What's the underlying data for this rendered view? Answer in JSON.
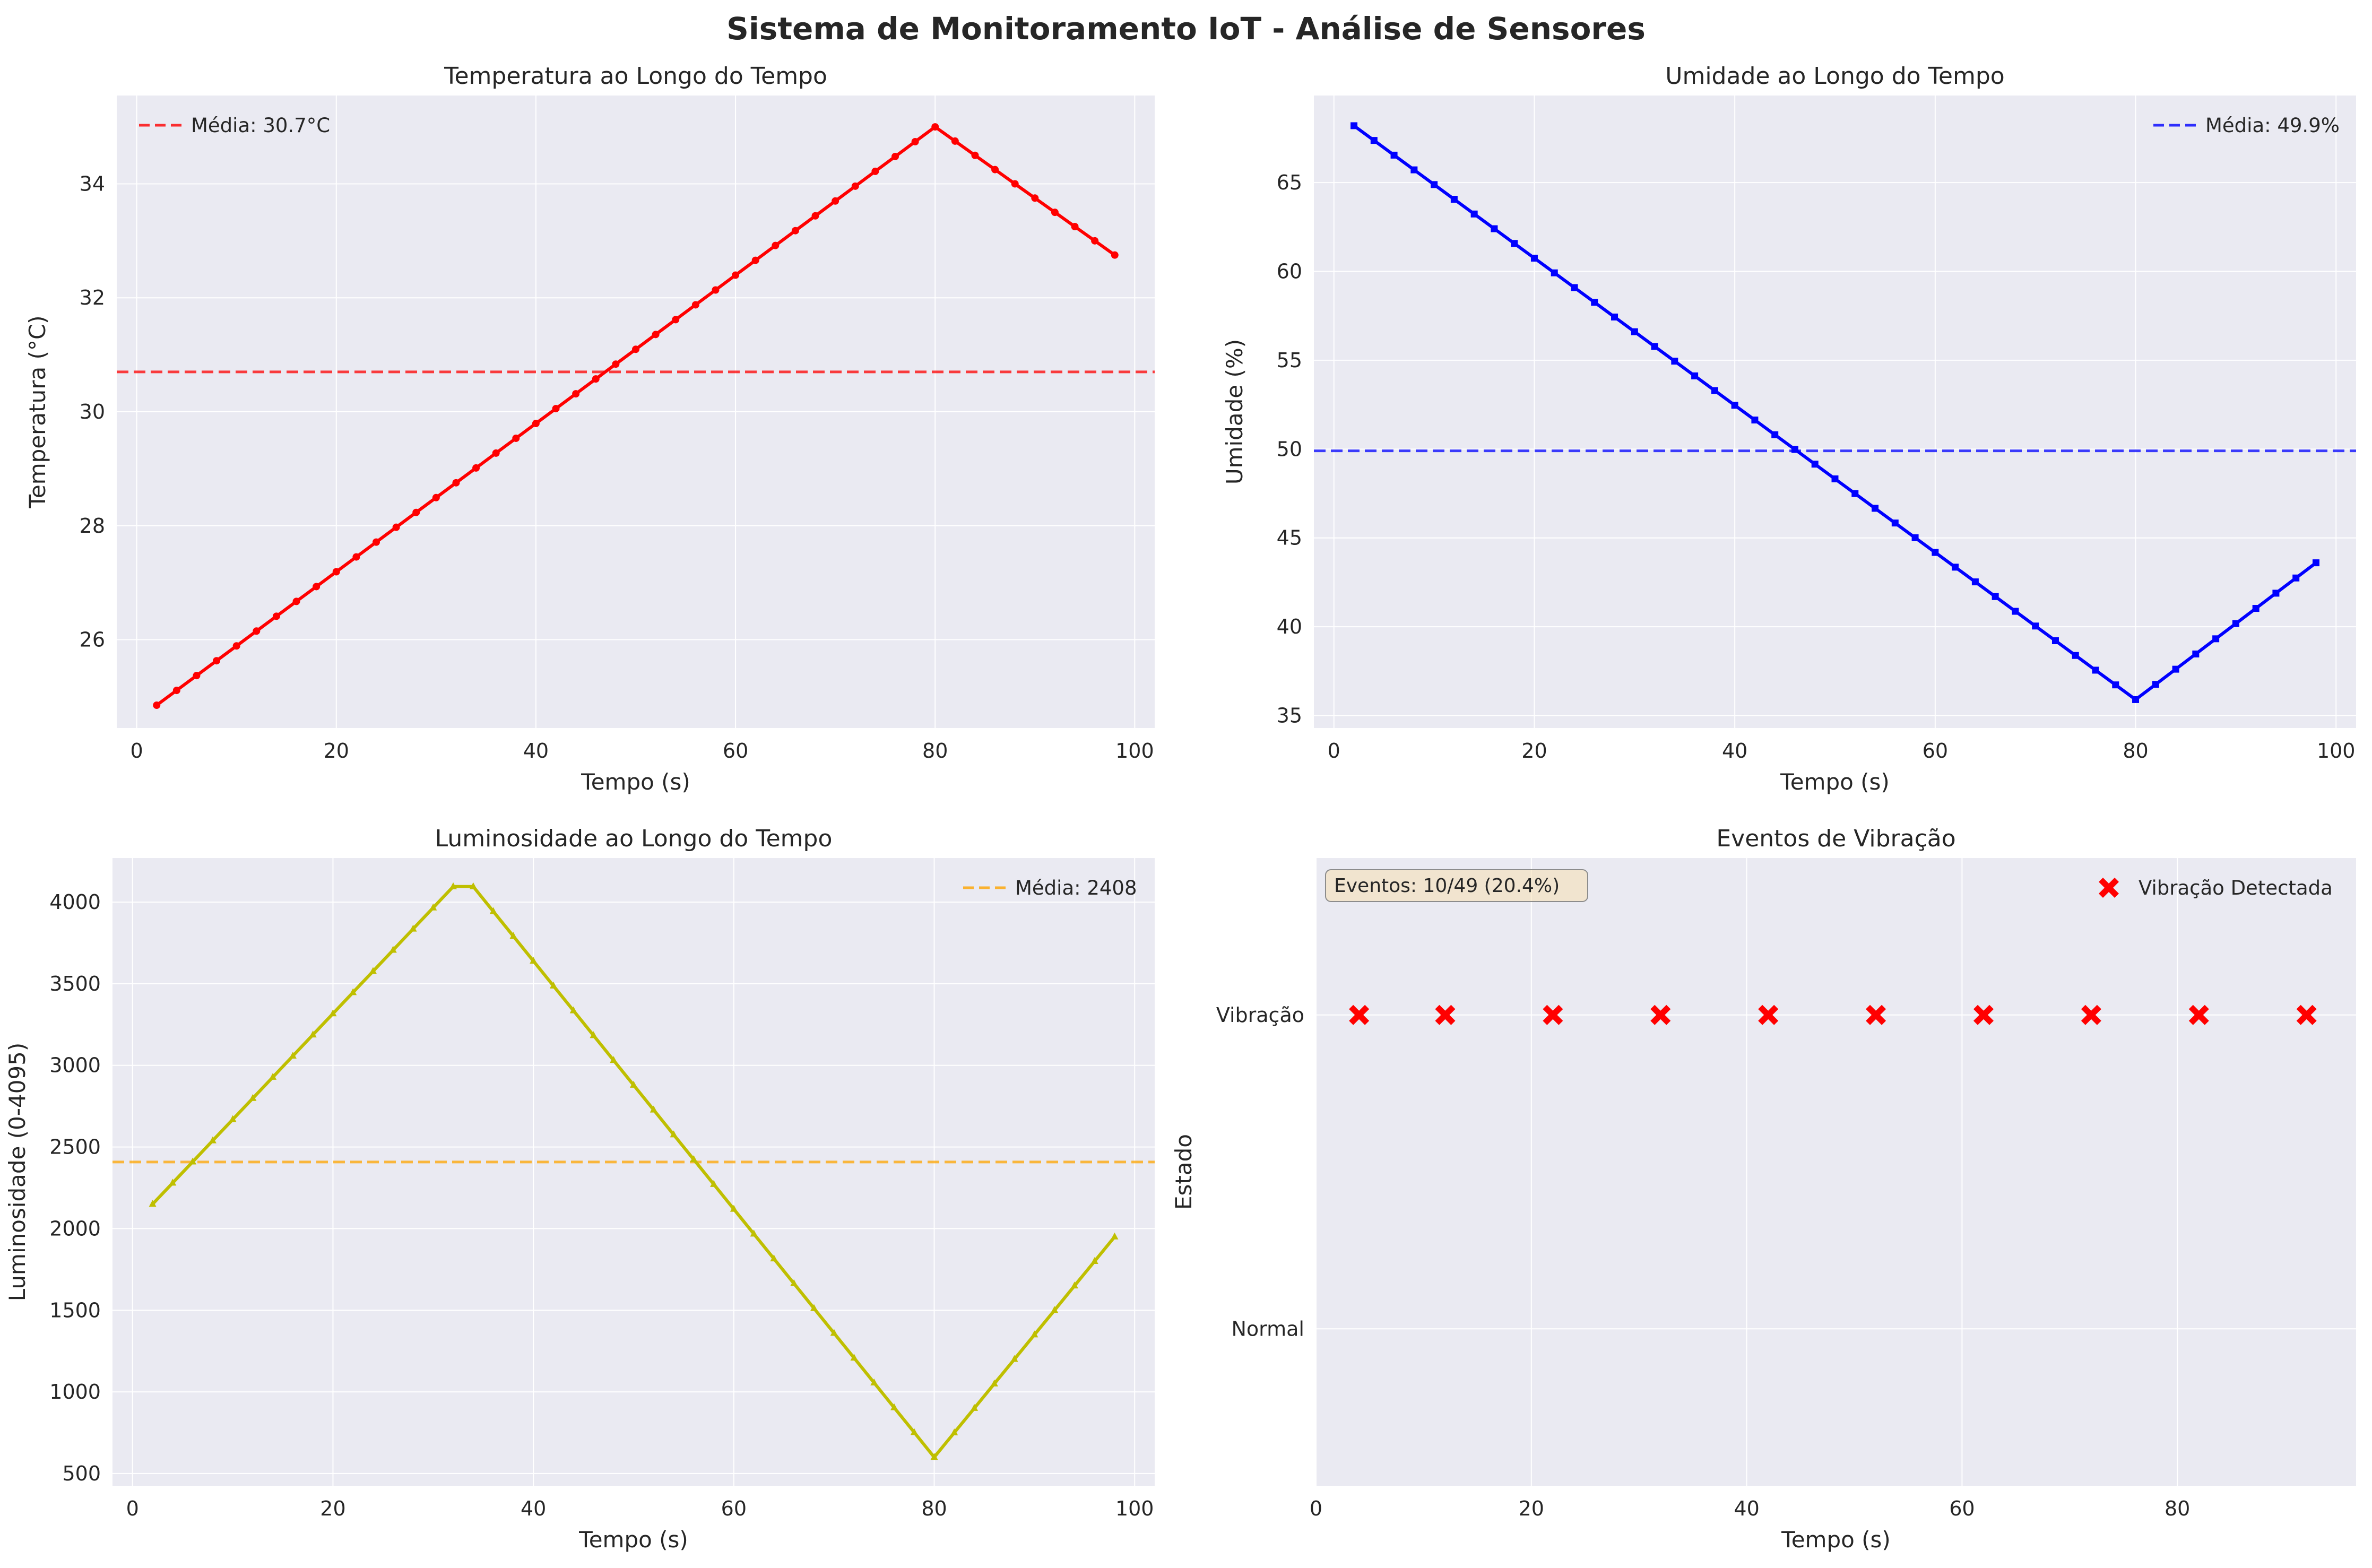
{
  "suptitle": "Sistema de Monitoramento IoT - Análise de Sensores",
  "colors": {
    "axes_bg": "#eaeaf2",
    "grid": "#ffffff",
    "text": "#262626",
    "legend_bg": "#ffffff",
    "annotation_bg": "#f5deb3",
    "annotation_edge": "#8c8c8c"
  },
  "chart_data": [
    {
      "type": "line",
      "title": "Temperatura ao Longo do Tempo",
      "xlabel": "Tempo (s)",
      "ylabel": "Temperatura (°C)",
      "xlim": [
        -2,
        102
      ],
      "ylim": [
        24.45,
        35.55
      ],
      "xticks": [
        0,
        20,
        40,
        60,
        80,
        100
      ],
      "yticks": [
        26,
        28,
        30,
        32,
        34
      ],
      "xtick_labels": [
        "0",
        "20",
        "40",
        "60",
        "80",
        "100"
      ],
      "ytick_labels": [
        "26",
        "28",
        "30",
        "32",
        "34"
      ],
      "grid": true,
      "legend_position": "upper-left",
      "series": [
        {
          "color": "#ff0000",
          "marker": "circle",
          "piecewise": [
            [
              2,
              24.85
            ],
            [
              80,
              35.0
            ],
            [
              98,
              32.75
            ]
          ],
          "x_range": [
            2,
            98,
            2
          ]
        }
      ],
      "reference_line": {
        "label": "Média: 30.7°C",
        "value": 30.7,
        "color": "#ff0000"
      }
    },
    {
      "type": "line",
      "title": "Umidade ao Longo do Tempo",
      "xlabel": "Tempo (s)",
      "ylabel": "Umidade (%)",
      "xlim": [
        -2,
        102
      ],
      "ylim": [
        34.3,
        69.9
      ],
      "xticks": [
        0,
        20,
        40,
        60,
        80,
        100
      ],
      "yticks": [
        35,
        40,
        45,
        50,
        55,
        60,
        65
      ],
      "xtick_labels": [
        "0",
        "20",
        "40",
        "60",
        "80",
        "100"
      ],
      "ytick_labels": [
        "35",
        "40",
        "45",
        "50",
        "55",
        "60",
        "65"
      ],
      "grid": true,
      "legend_position": "upper-right",
      "series": [
        {
          "color": "#0000ff",
          "marker": "square",
          "piecewise": [
            [
              2,
              68.2
            ],
            [
              80,
              35.9
            ],
            [
              98,
              43.6
            ]
          ],
          "x_range": [
            2,
            98,
            2
          ]
        }
      ],
      "reference_line": {
        "label": "Média: 49.9%",
        "value": 49.9,
        "color": "#0000ff"
      }
    },
    {
      "type": "line",
      "title": "Luminosidade ao Longo do Tempo",
      "xlabel": "Tempo (s)",
      "ylabel": "Luminosidade (0-4095)",
      "xlim": [
        -2,
        102
      ],
      "ylim": [
        425,
        4270
      ],
      "xticks": [
        0,
        20,
        40,
        60,
        80,
        100
      ],
      "yticks": [
        500,
        1000,
        1500,
        2000,
        2500,
        3000,
        3500,
        4000
      ],
      "xtick_labels": [
        "0",
        "20",
        "40",
        "60",
        "80",
        "100"
      ],
      "ytick_labels": [
        "500",
        "1000",
        "1500",
        "2000",
        "2500",
        "3000",
        "3500",
        "4000"
      ],
      "grid": true,
      "legend_position": "upper-right",
      "series": [
        {
          "color": "#bfbf00",
          "marker": "triangle",
          "piecewise": [
            [
              2,
              2150
            ],
            [
              32,
              4095
            ],
            [
              34,
              4095
            ],
            [
              80,
              600
            ],
            [
              98,
              1950
            ]
          ],
          "x_range": [
            2,
            98,
            2
          ]
        }
      ],
      "reference_line": {
        "label": "Média: 2408",
        "value": 2408,
        "color": "#ffa500"
      }
    },
    {
      "type": "scatter",
      "title": "Eventos de Vibração",
      "xlabel": "Tempo (s)",
      "ylabel": "Estado",
      "xlim": [
        0,
        96.6
      ],
      "ylim": [
        -0.5,
        1.5
      ],
      "xticks": [
        0,
        20,
        40,
        60,
        80
      ],
      "xtick_labels": [
        "0",
        "20",
        "40",
        "60",
        "80"
      ],
      "yticks": [
        0,
        1
      ],
      "ytick_labels": [
        "Normal",
        "Vibração"
      ],
      "grid": true,
      "legend_position": "upper-right",
      "series": [
        {
          "name": "Vibração Detectada",
          "color": "#ff0000",
          "marker": "x-filled",
          "x": [
            4,
            12,
            22,
            32,
            42,
            52,
            62,
            72,
            82,
            92
          ],
          "y": [
            1,
            1,
            1,
            1,
            1,
            1,
            1,
            1,
            1,
            1
          ]
        }
      ],
      "annotation": "Eventos: 10/49 (20.4%)"
    }
  ]
}
